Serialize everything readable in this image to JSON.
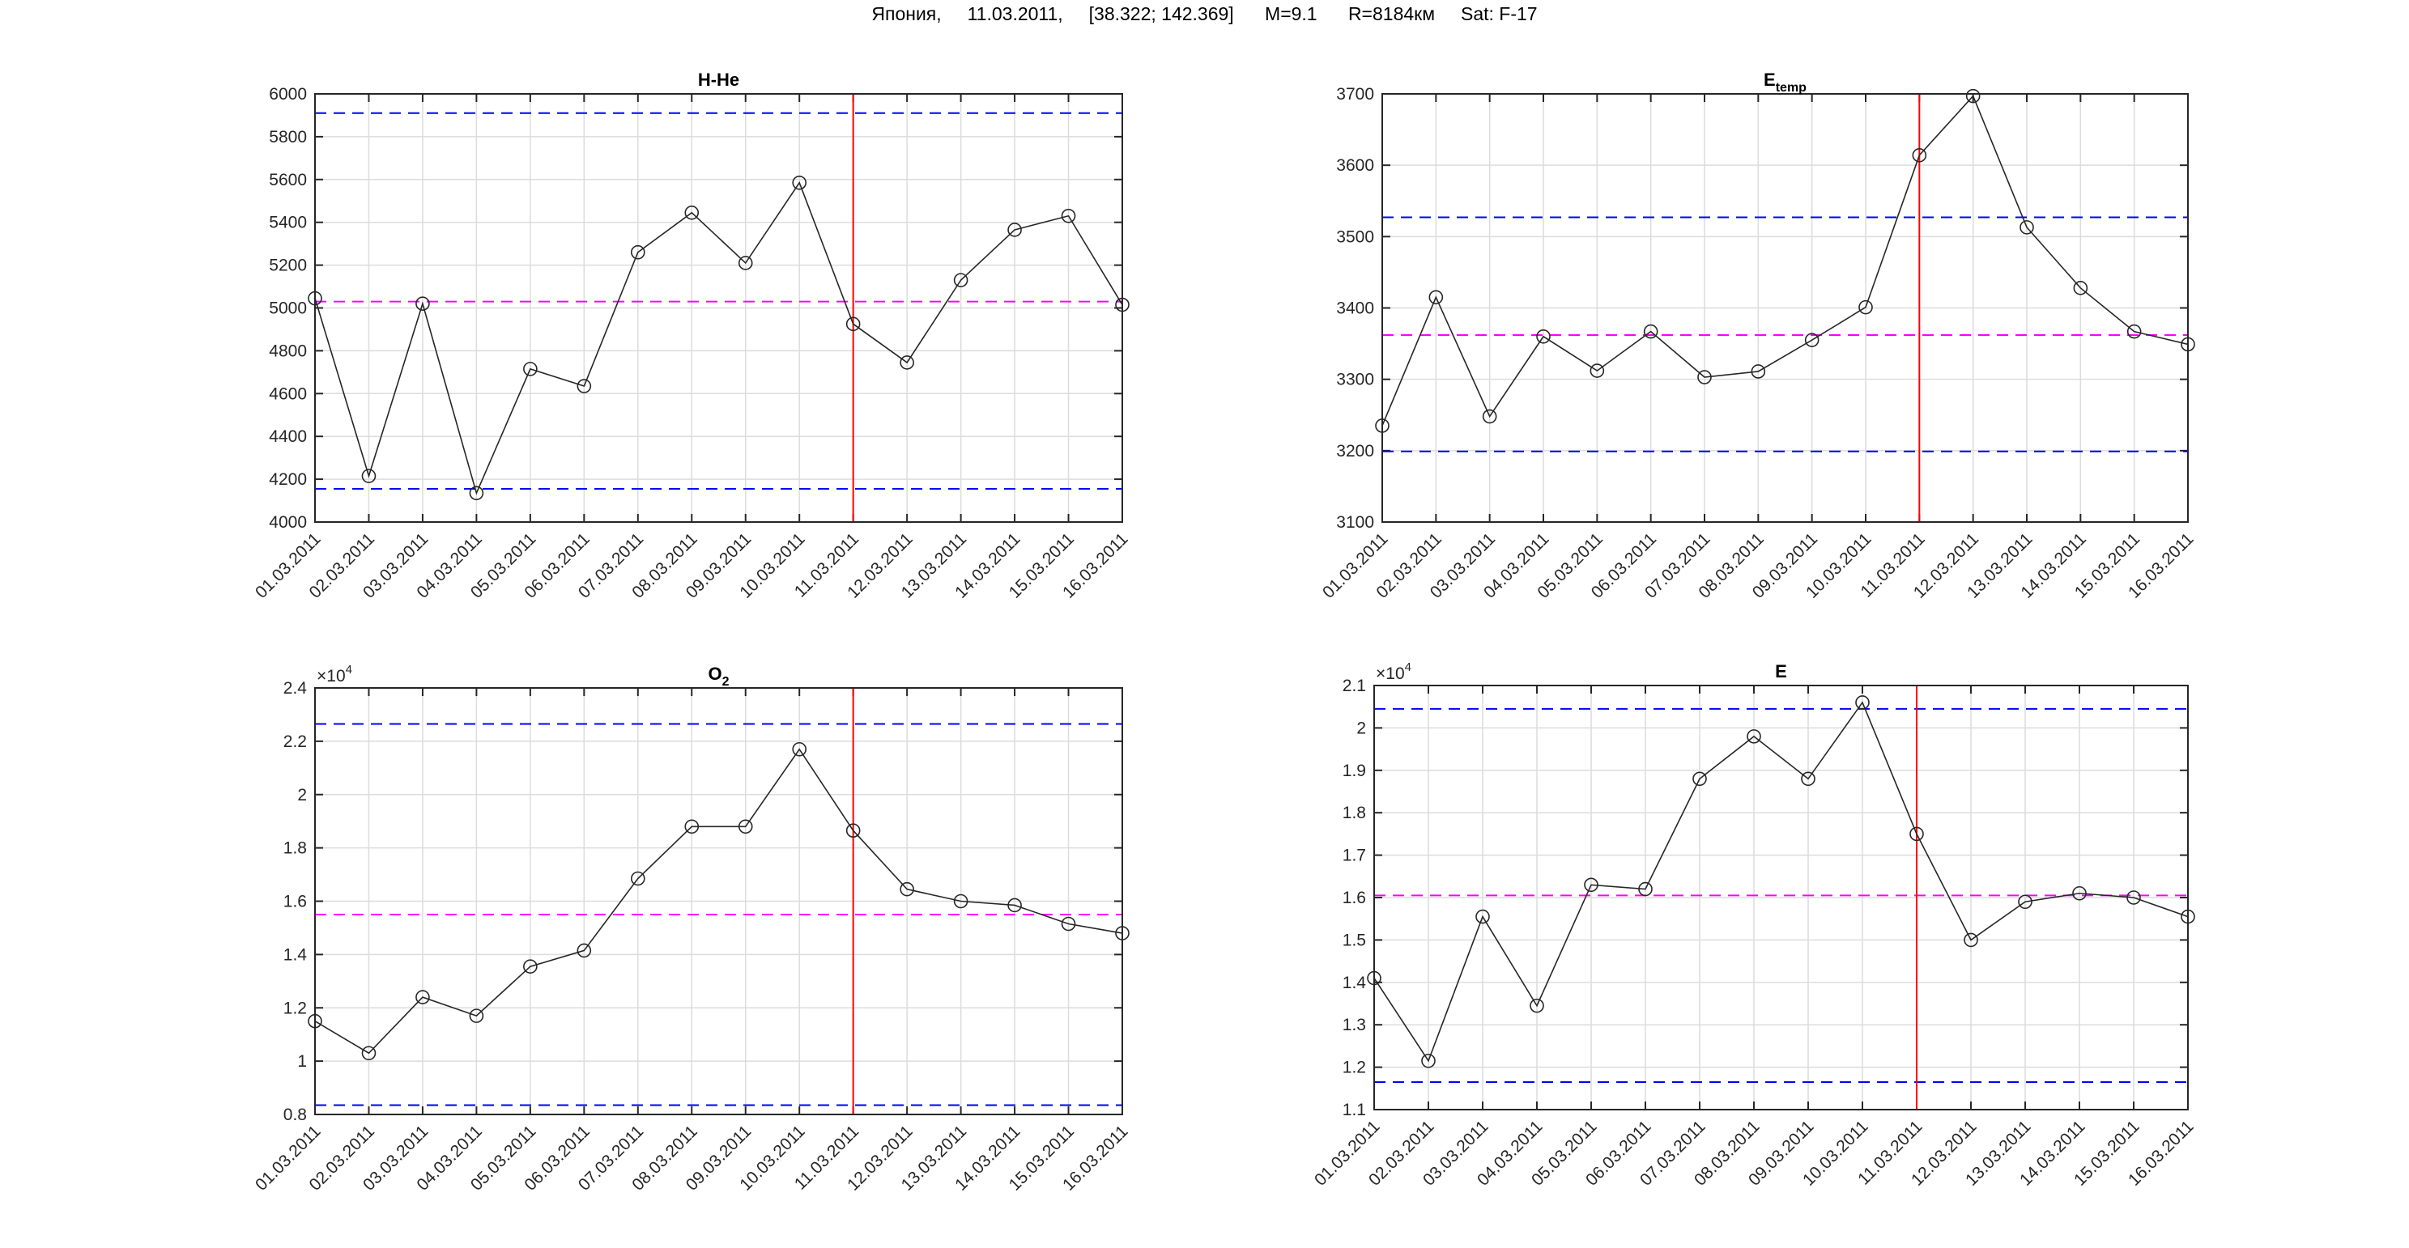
{
  "figure_title": "Япония,     11.03.2011,     [38.322; 142.369]      M=9.1      R=8184км     Sat: F-17",
  "colors": {
    "line": "#262626",
    "upper_lower": "#0000ff",
    "mean": "#ff00ff",
    "event": "#ff0000",
    "grid": "#dcdcdc"
  },
  "chart_data": [
    {
      "type": "line",
      "title": "H-He",
      "title_sub": "",
      "exponent": "",
      "categories": [
        "01.03.2011",
        "02.03.2011",
        "03.03.2011",
        "04.03.2011",
        "05.03.2011",
        "06.03.2011",
        "07.03.2011",
        "08.03.2011",
        "09.03.2011",
        "10.03.2011",
        "11.03.2011",
        "12.03.2011",
        "13.03.2011",
        "14.03.2011",
        "15.03.2011",
        "16.03.2011"
      ],
      "values": [
        5045,
        4215,
        5020,
        4135,
        4715,
        4635,
        5260,
        5445,
        5210,
        5585,
        4925,
        4745,
        5130,
        5365,
        5430,
        5015
      ],
      "ylim": [
        4000,
        6000
      ],
      "yticks": [
        4000,
        4200,
        4400,
        4600,
        4800,
        5000,
        5200,
        5400,
        5600,
        5800,
        6000
      ],
      "ytick_labels": [
        "4000",
        "4200",
        "4400",
        "4600",
        "4800",
        "5000",
        "5200",
        "5400",
        "5600",
        "5800",
        "6000"
      ],
      "upper": 5910,
      "mean": 5030,
      "lower": 4155,
      "event_date": "11.03.2011",
      "grid": true
    },
    {
      "type": "line",
      "title": "E",
      "title_sub": "temp",
      "exponent": "",
      "categories": [
        "01.03.2011",
        "02.03.2011",
        "03.03.2011",
        "04.03.2011",
        "05.03.2011",
        "06.03.2011",
        "07.03.2011",
        "08.03.2011",
        "09.03.2011",
        "10.03.2011",
        "11.03.2011",
        "12.03.2011",
        "13.03.2011",
        "14.03.2011",
        "15.03.2011",
        "16.03.2011"
      ],
      "values": [
        3235,
        3415,
        3248,
        3360,
        3312,
        3367,
        3303,
        3311,
        3355,
        3401,
        3614,
        3697,
        3513,
        3428,
        3367,
        3349
      ],
      "ylim": [
        3100,
        3700
      ],
      "yticks": [
        3100,
        3200,
        3300,
        3400,
        3500,
        3600,
        3700
      ],
      "ytick_labels": [
        "3100",
        "3200",
        "3300",
        "3400",
        "3500",
        "3600",
        "3700"
      ],
      "upper": 3527,
      "mean": 3362,
      "lower": 3199,
      "event_date": "11.03.2011",
      "grid": true
    },
    {
      "type": "line",
      "title": "O",
      "title_sub": "2",
      "exponent": "4",
      "categories": [
        "01.03.2011",
        "02.03.2011",
        "03.03.2011",
        "04.03.2011",
        "05.03.2011",
        "06.03.2011",
        "07.03.2011",
        "08.03.2011",
        "09.03.2011",
        "10.03.2011",
        "11.03.2011",
        "12.03.2011",
        "13.03.2011",
        "14.03.2011",
        "15.03.2011",
        "16.03.2011"
      ],
      "values": [
        11500,
        10300,
        12400,
        11700,
        13550,
        14150,
        16850,
        18800,
        18800,
        21700,
        18650,
        16450,
        16000,
        15850,
        15150,
        14800
      ],
      "ylim": [
        8000,
        24000
      ],
      "yticks": [
        8000,
        10000,
        12000,
        14000,
        16000,
        18000,
        20000,
        22000,
        24000
      ],
      "ytick_labels": [
        "0.8",
        "1",
        "1.2",
        "1.4",
        "1.6",
        "1.8",
        "2",
        "2.2",
        "2.4"
      ],
      "upper": 22650,
      "mean": 15500,
      "lower": 8350,
      "event_date": "11.03.2011",
      "grid": true
    },
    {
      "type": "line",
      "title": "E",
      "title_sub": "",
      "exponent": "4",
      "categories": [
        "01.03.2011",
        "02.03.2011",
        "03.03.2011",
        "04.03.2011",
        "05.03.2011",
        "06.03.2011",
        "07.03.2011",
        "08.03.2011",
        "09.03.2011",
        "10.03.2011",
        "11.03.2011",
        "12.03.2011",
        "13.03.2011",
        "14.03.2011",
        "15.03.2011",
        "16.03.2011"
      ],
      "values": [
        14100,
        12150,
        15550,
        13450,
        16300,
        16200,
        18800,
        19800,
        18800,
        20600,
        17500,
        15000,
        15900,
        16100,
        16000,
        15550
      ],
      "ylim": [
        11000,
        21000
      ],
      "yticks": [
        11000,
        12000,
        13000,
        14000,
        15000,
        16000,
        17000,
        18000,
        19000,
        20000,
        21000
      ],
      "ytick_labels": [
        "1.1",
        "1.2",
        "1.3",
        "1.4",
        "1.5",
        "1.6",
        "1.7",
        "1.8",
        "1.9",
        "2",
        "2.1"
      ],
      "upper": 20450,
      "mean": 16050,
      "lower": 11650,
      "event_date": "11.03.2011",
      "grid": true
    }
  ]
}
